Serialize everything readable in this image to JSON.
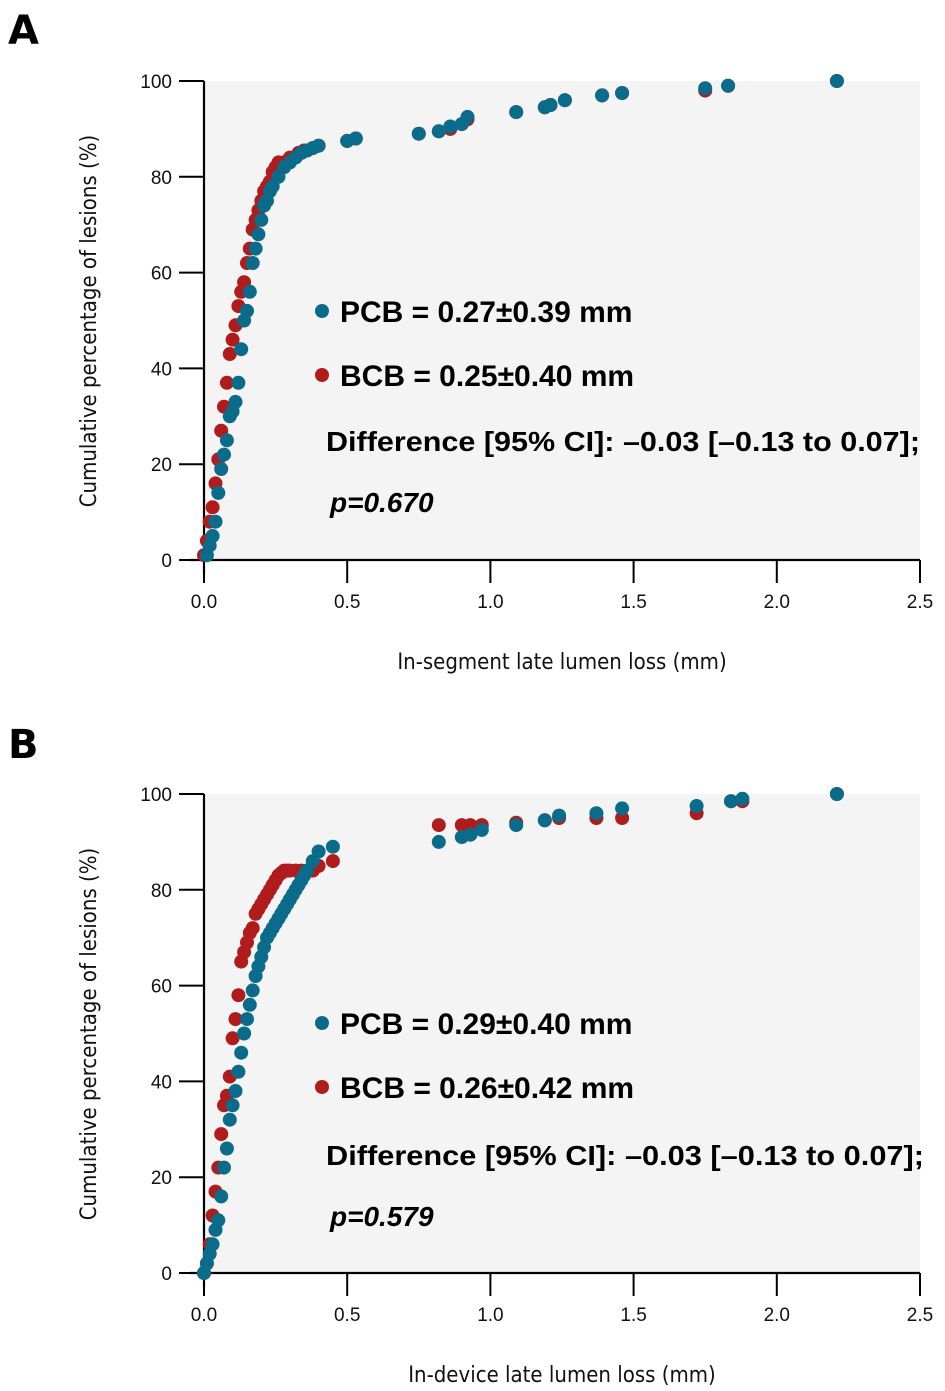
{
  "colors": {
    "pcb": "#0b6b8a",
    "bcb": "#b01c1c",
    "plot_bg": "#f4f4f4",
    "axis": "#000000"
  },
  "chart_data": [
    {
      "panel": "A",
      "type": "scatter",
      "title": "",
      "xlabel": "In-segment late lumen loss (mm)",
      "ylabel": "Cumulative percentage of lesions (%)",
      "xlim": [
        0,
        2.5
      ],
      "ylim": [
        0,
        100
      ],
      "xticks": [
        "0.0",
        "0.5",
        "1.0",
        "1.5",
        "2.0",
        "2.5"
      ],
      "yticks": [
        "0",
        "20",
        "40",
        "60",
        "80",
        "100"
      ],
      "grid": false,
      "legend": [
        {
          "series": "PCB",
          "text": "PCB = 0.27±0.39 mm"
        },
        {
          "series": "BCB",
          "text": "BCB = 0.25±0.40 mm"
        }
      ],
      "annotations": [
        "Difference [95% CI]: –0.03 [–0.13 to 0.07];",
        "p=0.670"
      ],
      "series": [
        {
          "name": "BCB",
          "x": [
            0.0,
            0.01,
            0.02,
            0.03,
            0.04,
            0.05,
            0.06,
            0.07,
            0.08,
            0.09,
            0.1,
            0.11,
            0.12,
            0.13,
            0.14,
            0.15,
            0.16,
            0.17,
            0.18,
            0.19,
            0.2,
            0.21,
            0.22,
            0.23,
            0.24,
            0.25,
            0.26,
            0.28,
            0.3,
            0.33,
            0.35,
            0.38,
            0.4,
            0.5,
            0.53,
            0.75,
            0.82,
            0.86,
            0.9,
            0.92,
            1.09,
            1.19,
            1.21,
            1.26,
            1.39,
            1.46,
            1.75,
            1.83,
            2.21
          ],
          "y": [
            1,
            4,
            8,
            11,
            16,
            21,
            27,
            32,
            37,
            43,
            46,
            49,
            53,
            56,
            58,
            62,
            65,
            69,
            71,
            73,
            75,
            77,
            78,
            79,
            81,
            82,
            83,
            83,
            84,
            85,
            85.5,
            86,
            86.5,
            87.5,
            88,
            89,
            89.5,
            90,
            91,
            92,
            93.5,
            94.5,
            95,
            96,
            97,
            97.5,
            98,
            99,
            100
          ]
        },
        {
          "name": "PCB",
          "x": [
            0.01,
            0.02,
            0.03,
            0.04,
            0.05,
            0.06,
            0.07,
            0.08,
            0.09,
            0.1,
            0.11,
            0.12,
            0.13,
            0.14,
            0.15,
            0.16,
            0.17,
            0.18,
            0.19,
            0.2,
            0.21,
            0.22,
            0.23,
            0.24,
            0.26,
            0.28,
            0.3,
            0.32,
            0.34,
            0.36,
            0.38,
            0.4,
            0.5,
            0.53,
            0.75,
            0.82,
            0.86,
            0.9,
            0.92,
            1.09,
            1.19,
            1.21,
            1.26,
            1.39,
            1.46,
            1.75,
            1.83,
            2.21
          ],
          "y": [
            1,
            3,
            5,
            8,
            14,
            19,
            22,
            25,
            30,
            31,
            33,
            37,
            44,
            50,
            52,
            56,
            62,
            65,
            68,
            71,
            74,
            75,
            77,
            78,
            80,
            82,
            83,
            84,
            85,
            85.5,
            86,
            86.5,
            87.5,
            88,
            89,
            89.5,
            90.5,
            91,
            92.5,
            93.5,
            94.5,
            95,
            96,
            97,
            97.5,
            98.5,
            99,
            100
          ]
        }
      ]
    },
    {
      "panel": "B",
      "type": "scatter",
      "title": "",
      "xlabel": "In-device late lumen loss (mm)",
      "ylabel": "Cumulative percentage of lesions (%)",
      "xlim": [
        0,
        2.5
      ],
      "ylim": [
        0,
        100
      ],
      "xticks": [
        "0.0",
        "0.5",
        "1.0",
        "1.5",
        "2.0",
        "2.5"
      ],
      "yticks": [
        "0",
        "20",
        "40",
        "60",
        "80",
        "100"
      ],
      "grid": false,
      "legend": [
        {
          "series": "PCB",
          "text": "PCB = 0.29±0.40 mm"
        },
        {
          "series": "BCB",
          "text": "BCB = 0.26±0.42 mm"
        }
      ],
      "annotations": [
        "Difference [95% CI]: –0.03 [–0.13 to 0.07];",
        "p=0.579"
      ],
      "series": [
        {
          "name": "BCB",
          "x": [
            0.0,
            0.01,
            0.02,
            0.03,
            0.04,
            0.05,
            0.06,
            0.07,
            0.08,
            0.09,
            0.1,
            0.11,
            0.12,
            0.13,
            0.14,
            0.15,
            0.16,
            0.17,
            0.18,
            0.19,
            0.2,
            0.21,
            0.22,
            0.23,
            0.24,
            0.25,
            0.26,
            0.27,
            0.28,
            0.29,
            0.3,
            0.32,
            0.34,
            0.36,
            0.38,
            0.4,
            0.45,
            0.82,
            0.9,
            0.93,
            0.97,
            1.09,
            1.19,
            1.24,
            1.37,
            1.46,
            1.72,
            1.84,
            1.88,
            2.21
          ],
          "y": [
            0,
            2,
            6,
            12,
            17,
            22,
            29,
            35,
            37,
            41,
            49,
            53,
            58,
            65,
            67,
            69,
            71,
            72,
            75,
            76,
            77,
            78,
            79,
            80,
            81,
            82,
            83,
            83.5,
            84,
            84,
            84,
            84,
            84,
            84,
            84,
            85,
            86,
            93.5,
            93.5,
            93.5,
            93.5,
            94,
            94.5,
            95,
            95,
            95,
            96,
            98.5,
            98.5,
            100
          ]
        },
        {
          "name": "PCB",
          "x": [
            0.0,
            0.01,
            0.02,
            0.03,
            0.04,
            0.05,
            0.06,
            0.07,
            0.08,
            0.09,
            0.1,
            0.11,
            0.12,
            0.13,
            0.14,
            0.15,
            0.16,
            0.17,
            0.18,
            0.19,
            0.2,
            0.21,
            0.22,
            0.23,
            0.24,
            0.25,
            0.26,
            0.27,
            0.28,
            0.29,
            0.3,
            0.31,
            0.32,
            0.33,
            0.34,
            0.35,
            0.36,
            0.38,
            0.4,
            0.45,
            0.82,
            0.9,
            0.93,
            0.97,
            1.09,
            1.19,
            1.24,
            1.37,
            1.46,
            1.72,
            1.84,
            1.88,
            2.21
          ],
          "y": [
            0,
            2,
            4,
            6,
            9,
            11,
            16,
            22,
            26,
            32,
            35,
            38,
            42,
            46,
            50,
            53,
            56,
            59,
            62,
            64,
            66,
            68,
            70,
            71,
            72,
            73,
            74,
            75,
            76,
            77,
            78,
            79,
            80,
            81,
            82,
            83,
            84,
            86,
            88,
            89,
            90,
            91,
            91.5,
            92.5,
            93.5,
            94.5,
            95.5,
            96,
            97,
            97.5,
            98.5,
            99,
            100
          ]
        }
      ]
    }
  ],
  "panels": {
    "a": {
      "letter": "A"
    },
    "b": {
      "letter": "B"
    }
  }
}
